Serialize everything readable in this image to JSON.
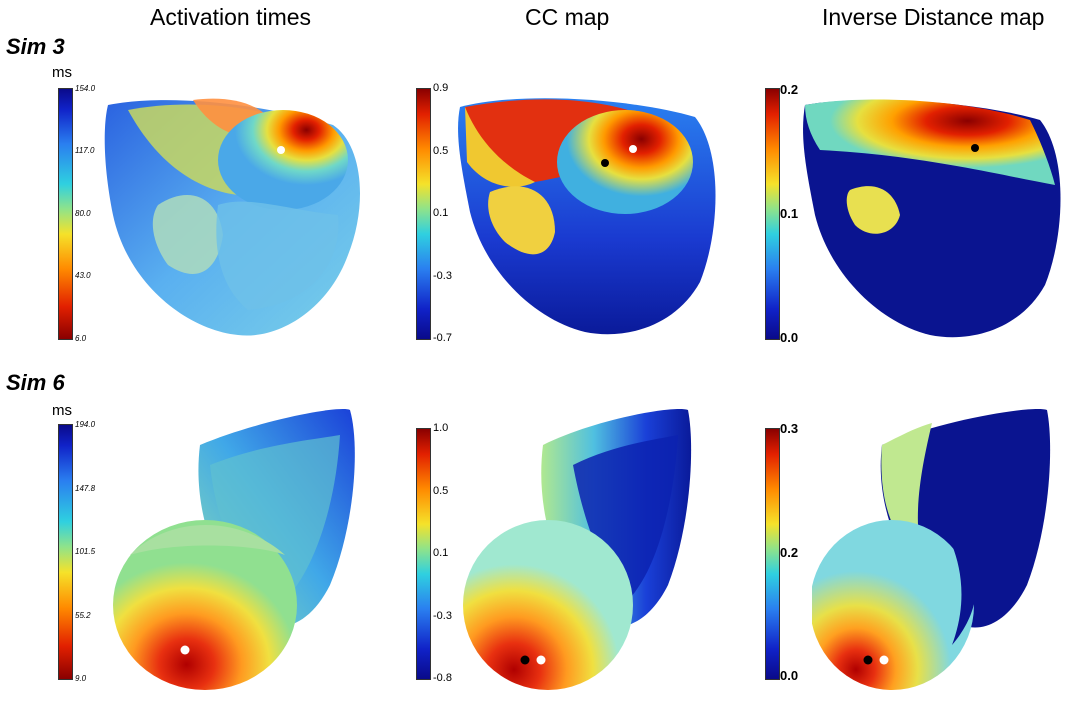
{
  "columns": [
    "Activation times",
    "CC map",
    "Inverse Distance map"
  ],
  "rows": [
    {
      "label": "Sim 3",
      "at_unit": "ms",
      "at_ticks": [
        "154.0",
        "117.0",
        "80.0",
        "43.0",
        "6.0"
      ],
      "cc_ticks": [
        "0.9",
        "0.5",
        "0.1",
        "-0.3",
        "-0.7"
      ],
      "id_ticks": [
        "0.2",
        "0.1",
        "0.0"
      ]
    },
    {
      "label": "Sim 6",
      "at_unit": "ms",
      "at_ticks": [
        "194.0",
        "147.8",
        "101.5",
        "55.2",
        "9.0"
      ],
      "cc_ticks": [
        "1.0",
        "0.5",
        "0.1",
        "-0.3",
        "-0.8"
      ],
      "id_ticks": [
        "0.3",
        "0.2",
        "0.0"
      ]
    }
  ],
  "colors": {
    "jet_high": "#8a0000",
    "jet_mid": "#f5e22a",
    "jet_low": "#0a0a8a"
  }
}
